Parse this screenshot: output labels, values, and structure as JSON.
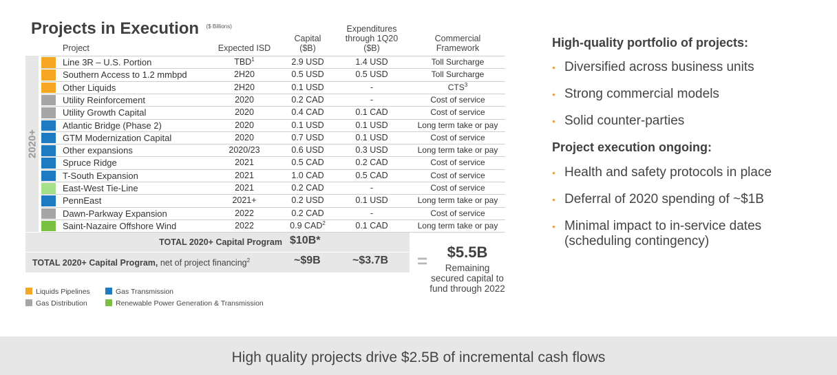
{
  "title": "Projects in Execution",
  "title_unit": "($ Billions)",
  "headers": {
    "project": "Project",
    "isd": "Expected ISD",
    "capital_l1": "Capital",
    "capital_l2": "($B)",
    "exp_l1": "Expenditures",
    "exp_l2": "through 1Q20",
    "exp_l3": "($B)",
    "fw_l1": "Commercial",
    "fw_l2": "Framework"
  },
  "side_label": "2020+",
  "colors": {
    "liquids": "#f5a623",
    "gas_distribution": "#a6a6a6",
    "gas_transmission": "#1f7bc1",
    "renewable": "#7ac143",
    "renewable_light": "#a6e08a",
    "bullet": "#f5a623"
  },
  "rows": [
    {
      "name": "Line 3R – U.S. Portion",
      "isd": "TBD",
      "isd_sup": "1",
      "capital": "2.9 USD",
      "capital_sup": "",
      "exp": "1.4 USD",
      "framework": "Toll Surcharge",
      "framework_sup": "",
      "color": "#f5a623"
    },
    {
      "name": "Southern Access to 1.2 mmbpd",
      "isd": "2H20",
      "isd_sup": "",
      "capital": "0.5 USD",
      "capital_sup": "",
      "exp": "0.5 USD",
      "framework": "Toll Surcharge",
      "framework_sup": "",
      "color": "#f5a623"
    },
    {
      "name": "Other Liquids",
      "isd": "2H20",
      "isd_sup": "",
      "capital": "0.1 USD",
      "capital_sup": "",
      "exp": "-",
      "framework": "CTS",
      "framework_sup": "3",
      "color": "#f5a623"
    },
    {
      "name": "Utility Reinforcement",
      "isd": "2020",
      "isd_sup": "",
      "capital": "0.2 CAD",
      "capital_sup": "",
      "exp": "-",
      "framework": "Cost of service",
      "framework_sup": "",
      "color": "#a6a6a6"
    },
    {
      "name": "Utility Growth Capital",
      "isd": "2020",
      "isd_sup": "",
      "capital": "0.4 CAD",
      "capital_sup": "",
      "exp": "0.1 CAD",
      "framework": "Cost of service",
      "framework_sup": "",
      "color": "#a6a6a6"
    },
    {
      "name": "Atlantic Bridge (Phase 2)",
      "isd": "2020",
      "isd_sup": "",
      "capital": "0.1 USD",
      "capital_sup": "",
      "exp": "0.1 USD",
      "framework": "Long term take or pay",
      "framework_sup": "",
      "color": "#1f7bc1"
    },
    {
      "name": "GTM Modernization Capital",
      "isd": "2020",
      "isd_sup": "",
      "capital": "0.7 USD",
      "capital_sup": "",
      "exp": "0.1 USD",
      "framework": "Cost of service",
      "framework_sup": "",
      "color": "#1f7bc1"
    },
    {
      "name": "Other expansions",
      "isd": "2020/23",
      "isd_sup": "",
      "capital": "0.6 USD",
      "capital_sup": "",
      "exp": "0.3 USD",
      "framework": "Long term take or pay",
      "framework_sup": "",
      "color": "#1f7bc1"
    },
    {
      "name": "Spruce Ridge",
      "isd": "2021",
      "isd_sup": "",
      "capital": "0.5 CAD",
      "capital_sup": "",
      "exp": "0.2 CAD",
      "framework": "Cost of service",
      "framework_sup": "",
      "color": "#1f7bc1"
    },
    {
      "name": "T-South Expansion",
      "isd": "2021",
      "isd_sup": "",
      "capital": "1.0 CAD",
      "capital_sup": "",
      "exp": "0.5 CAD",
      "framework": "Cost of service",
      "framework_sup": "",
      "color": "#1f7bc1"
    },
    {
      "name": "East-West Tie-Line",
      "isd": "2021",
      "isd_sup": "",
      "capital": "0.2 CAD",
      "capital_sup": "",
      "exp": "-",
      "framework": "Cost of service",
      "framework_sup": "",
      "color": "#a6e08a"
    },
    {
      "name": "PennEast",
      "isd": "2021+",
      "isd_sup": "",
      "capital": "0.2 USD",
      "capital_sup": "",
      "exp": "0.1 USD",
      "framework": "Long term take or pay",
      "framework_sup": "",
      "color": "#1f7bc1"
    },
    {
      "name": "Dawn-Parkway Expansion",
      "isd": "2022",
      "isd_sup": "",
      "capital": "0.2 CAD",
      "capital_sup": "",
      "exp": "-",
      "framework": "Cost of service",
      "framework_sup": "",
      "color": "#a6a6a6"
    },
    {
      "name": "Saint-Nazaire Offshore Wind",
      "isd": "2022",
      "isd_sup": "",
      "capital": "0.9 CAD",
      "capital_sup": "2",
      "exp": "0.1 CAD",
      "framework": "Long term take or pay",
      "framework_sup": "",
      "color": "#7ac143"
    }
  ],
  "total1": {
    "label": "TOTAL 2020+ Capital Program",
    "value": "$10B*"
  },
  "total2": {
    "label_bold": "TOTAL 2020+ Capital Program,",
    "label_rest": " net of project financing",
    "label_sup": "2",
    "capital": "~$9B",
    "exp": "~$3.7B"
  },
  "summary": {
    "equals": "=",
    "value": "$5.5B",
    "sub_l1": "Remaining",
    "sub_l2": "secured capital to",
    "sub_l3": "fund through 2022"
  },
  "legend": {
    "liquids": "Liquids Pipelines",
    "gas_transmission": "Gas Transmission",
    "gas_distribution": "Gas Distribution",
    "renewable": "Renewable Power Generation & Transmission"
  },
  "right": {
    "heading1": "High-quality portfolio of projects:",
    "bullets1": [
      "Diversified across business units",
      "Strong commercial models",
      "Solid counter-parties"
    ],
    "heading2": "Project execution ongoing:",
    "bullets2": [
      "Health and safety protocols in place",
      "Deferral of 2020 spending of ~$1B"
    ],
    "bullet_last_l1": "Minimal impact to in-service dates",
    "bullet_last_l2": "(scheduling contingency)",
    "bullet_glyph": "•"
  },
  "banner": "High quality projects drive $2.5B of incremental cash flows"
}
